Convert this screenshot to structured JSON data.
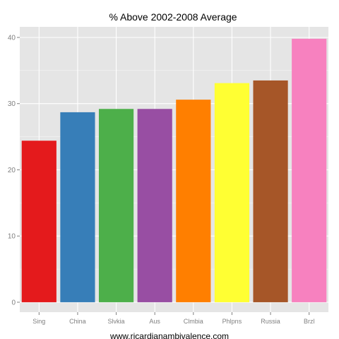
{
  "chart_data": {
    "type": "bar",
    "title": "% Above 2002-2008 Average",
    "xlabel": "www.ricardianambivalence.com",
    "ylabel": "",
    "categories": [
      "Sing",
      "China",
      "Slvkia",
      "Aus",
      "Clmbia",
      "Phlpns",
      "Russia",
      "Brzl"
    ],
    "values": [
      24.4,
      28.7,
      29.2,
      29.2,
      30.6,
      33.1,
      33.5,
      39.8
    ],
    "bar_colors": [
      "#E41A1C",
      "#377EB8",
      "#4DAF4A",
      "#984EA3",
      "#FF7F00",
      "#FFFF33",
      "#A65628",
      "#F781BF"
    ],
    "ylim": [
      -1.5,
      41.6
    ],
    "yticks": [
      0,
      10,
      20,
      30,
      40
    ],
    "grid": true,
    "legend": "none",
    "panel_background": "#E5E5E5",
    "grid_color": "#FFFFFF"
  }
}
